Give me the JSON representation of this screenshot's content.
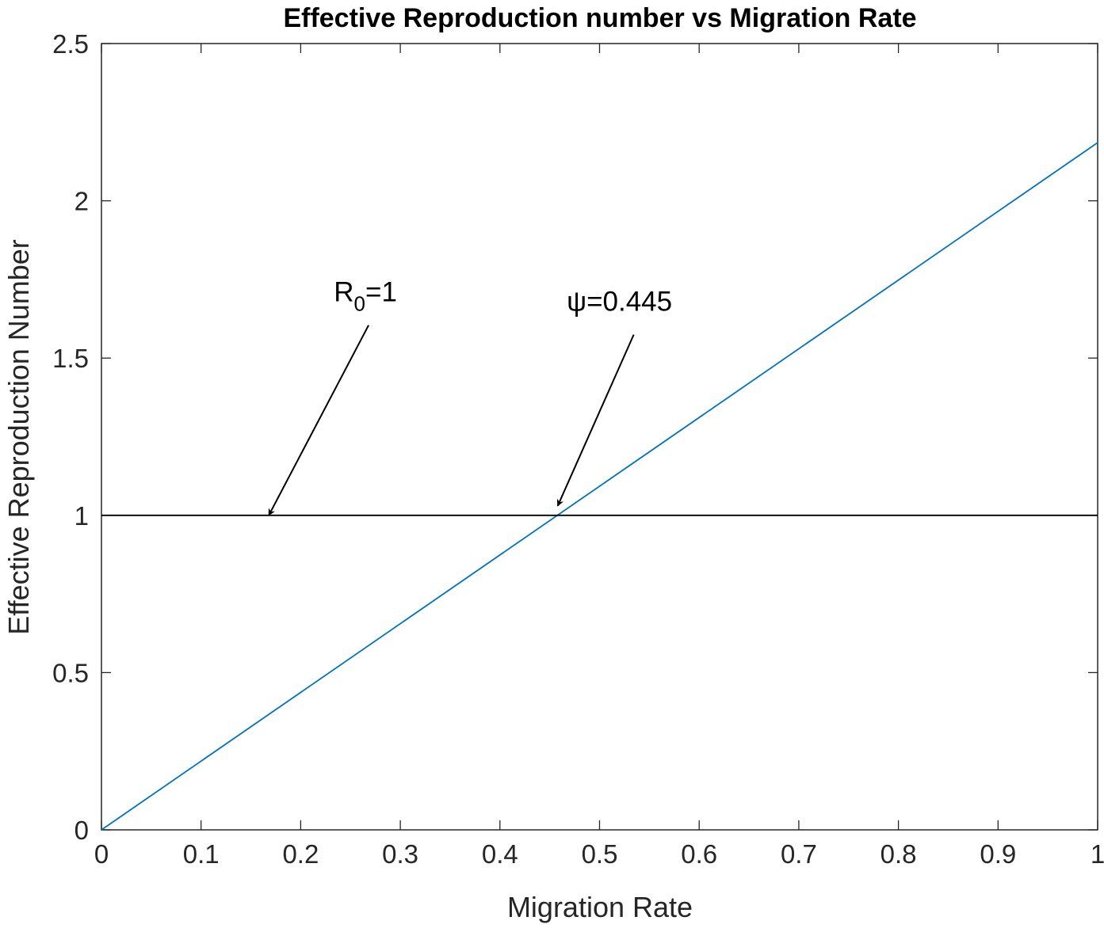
{
  "chart_data": {
    "type": "line",
    "title": "Effective Reproduction number vs Migration Rate",
    "xlabel": "Migration Rate",
    "ylabel": "Effective Reproduction Number",
    "xlim": [
      0,
      1
    ],
    "ylim": [
      0,
      2.5
    ],
    "xticks": [
      0,
      0.1,
      0.2,
      0.3,
      0.4,
      0.5,
      0.6,
      0.7,
      0.8,
      0.9,
      1
    ],
    "xtick_labels": [
      "0",
      "0.1",
      "0.2",
      "0.3",
      "0.4",
      "0.5",
      "0.6",
      "0.7",
      "0.8",
      "0.9",
      "1"
    ],
    "yticks": [
      0,
      0.5,
      1,
      1.5,
      2,
      2.5
    ],
    "ytick_labels": [
      "0",
      "0.5",
      "1",
      "1.5",
      "2",
      "2.5"
    ],
    "grid": false,
    "series": [
      {
        "x": [
          0,
          1
        ],
        "y": [
          0,
          2.185
        ],
        "color": "#0072BD"
      },
      {
        "x": [
          0,
          1
        ],
        "y": [
          1,
          1
        ],
        "color": "#000000"
      }
    ],
    "annotations": [
      {
        "text_main": "R",
        "text_sub": "0",
        "text_tail": "=1",
        "point": [
          0.168,
          1.0
        ],
        "text_at": [
          0.265,
          1.68
        ]
      },
      {
        "text_main": "ψ=0.445",
        "text_sub": "",
        "text_tail": "",
        "point": [
          0.458,
          1.03
        ],
        "text_at": [
          0.52,
          1.65
        ]
      }
    ]
  }
}
